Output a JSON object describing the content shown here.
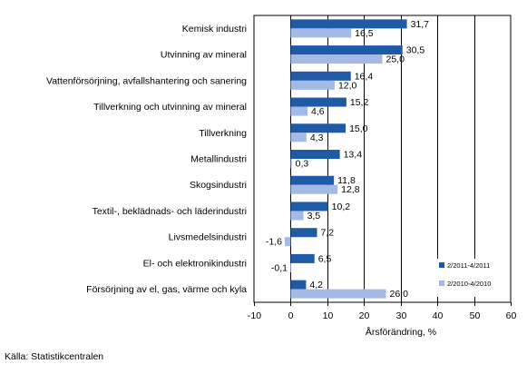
{
  "chart_data": {
    "type": "bar",
    "orientation": "horizontal",
    "categories": [
      "Kemisk industri",
      "Utvinning av mineral",
      "Vattenförsörjning, avfallshantering och sanering",
      "Tillverkning och utvinning av mineral",
      "Tillverkning",
      "Metallindustri",
      "Skogsindustri",
      "Textil-, beklädnads- och läderindustri",
      "Livsmedelsindustri",
      "El- och elektronikindustri",
      "Försörjning av el, gas, värme och kyla"
    ],
    "series": [
      {
        "name": "2/2011-4/2011",
        "color": "#1f5aa6",
        "values": [
          31.7,
          30.5,
          16.4,
          15.2,
          15.0,
          13.4,
          11.8,
          10.2,
          7.2,
          6.5,
          4.2
        ],
        "labels": [
          "31,7",
          "30,5",
          "16,4",
          "15,2",
          "15,0",
          "13,4",
          "11,8",
          "10,2",
          "7,2",
          "6,5",
          "4,2"
        ]
      },
      {
        "name": "2/2010-4/2010",
        "color": "#a4b9e4",
        "values": [
          16.5,
          25.0,
          12.0,
          4.6,
          4.3,
          0.3,
          12.8,
          3.5,
          -1.6,
          -0.1,
          26.0
        ],
        "labels": [
          "16,5",
          "25,0",
          "12,0",
          "4,6",
          "4,3",
          "0,3",
          "12,8",
          "3,5",
          "-1,6",
          "-0,1",
          "26,0"
        ]
      }
    ],
    "xlim": [
      -10,
      60
    ],
    "xticks": [
      -10,
      0,
      10,
      20,
      30,
      40,
      50,
      60
    ],
    "xlabel": "Årsförändring, %",
    "grid": "vertical gridlines",
    "legend_position": "bottom-right"
  },
  "source": "Källa: Statistikcentralen"
}
